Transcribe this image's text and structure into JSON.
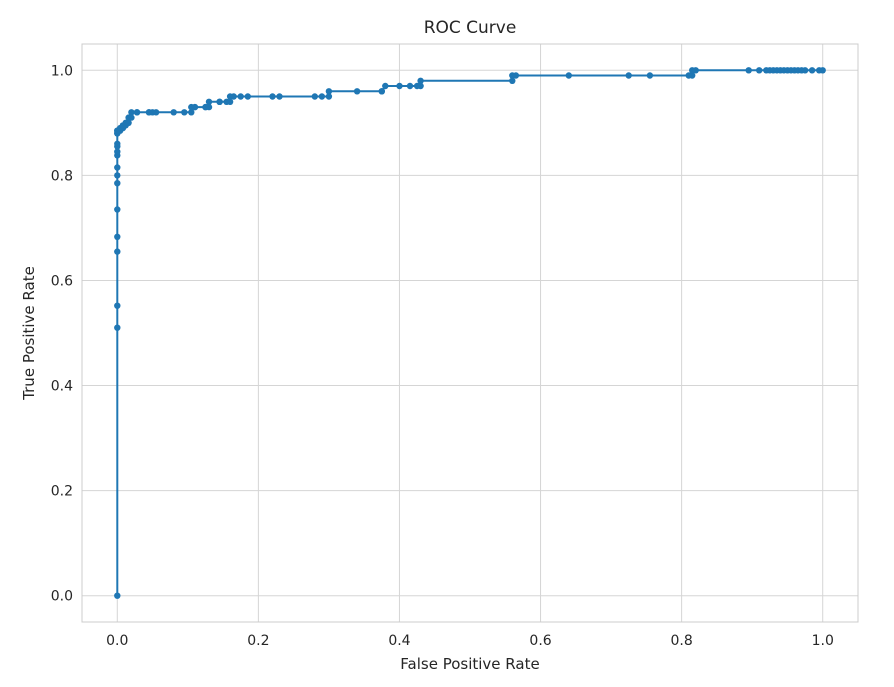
{
  "chart_data": {
    "type": "line",
    "title": "ROC Curve",
    "xlabel": "False Positive Rate",
    "ylabel": "True Positive Rate",
    "xlim": [
      -0.05,
      1.05
    ],
    "ylim": [
      -0.05,
      1.05
    ],
    "xticks": [
      0.0,
      0.2,
      0.4,
      0.6,
      0.8,
      1.0
    ],
    "xtick_labels": [
      "0.0",
      "0.2",
      "0.4",
      "0.6",
      "0.8",
      "1.0"
    ],
    "yticks": [
      0.0,
      0.2,
      0.4,
      0.6,
      0.8,
      1.0
    ],
    "ytick_labels": [
      "0.0",
      "0.2",
      "0.4",
      "0.6",
      "0.8",
      "1.0"
    ],
    "grid": true,
    "colors": {
      "line": "#1f77b4",
      "grid": "#d5d5d5",
      "frame": "#cccccc",
      "text": "#262626"
    },
    "series": [
      {
        "marker": "circle",
        "x": [
          0.0,
          0.0,
          0.0,
          0.0,
          0.0,
          0.0,
          0.0,
          0.0,
          0.0,
          0.0,
          0.0,
          0.0,
          0.0,
          0.0,
          0.0,
          0.0,
          0.0,
          0.004,
          0.004,
          0.008,
          0.008,
          0.012,
          0.012,
          0.016,
          0.016,
          0.02,
          0.02,
          0.028,
          0.028,
          0.045,
          0.045,
          0.05,
          0.055,
          0.08,
          0.095,
          0.105,
          0.105,
          0.11,
          0.11,
          0.125,
          0.125,
          0.13,
          0.13,
          0.145,
          0.145,
          0.155,
          0.16,
          0.16,
          0.165,
          0.175,
          0.185,
          0.22,
          0.23,
          0.28,
          0.29,
          0.3,
          0.3,
          0.34,
          0.375,
          0.375,
          0.38,
          0.4,
          0.415,
          0.425,
          0.43,
          0.43,
          0.56,
          0.56,
          0.565,
          0.64,
          0.725,
          0.755,
          0.81,
          0.815,
          0.815,
          0.82,
          0.895,
          0.91,
          0.92,
          0.925,
          0.93,
          0.935,
          0.94,
          0.945,
          0.95,
          0.955,
          0.96,
          0.965,
          0.97,
          0.975,
          0.985,
          0.995,
          1.0
        ],
        "y": [
          0.0,
          0.51,
          0.552,
          0.655,
          0.683,
          0.735,
          0.785,
          0.8,
          0.815,
          0.838,
          0.845,
          0.855,
          0.86,
          0.88,
          0.88,
          0.885,
          0.885,
          0.885,
          0.89,
          0.89,
          0.895,
          0.895,
          0.9,
          0.9,
          0.91,
          0.91,
          0.92,
          0.92,
          0.92,
          0.92,
          0.92,
          0.92,
          0.92,
          0.92,
          0.92,
          0.92,
          0.93,
          0.93,
          0.93,
          0.93,
          0.93,
          0.93,
          0.94,
          0.94,
          0.94,
          0.94,
          0.94,
          0.95,
          0.95,
          0.95,
          0.95,
          0.95,
          0.95,
          0.95,
          0.95,
          0.95,
          0.96,
          0.96,
          0.96,
          0.96,
          0.97,
          0.97,
          0.97,
          0.97,
          0.97,
          0.98,
          0.98,
          0.99,
          0.99,
          0.99,
          0.99,
          0.99,
          0.99,
          0.99,
          1.0,
          1.0,
          1.0,
          1.0,
          1.0,
          1.0,
          1.0,
          1.0,
          1.0,
          1.0,
          1.0,
          1.0,
          1.0,
          1.0,
          1.0,
          1.0,
          1.0,
          1.0,
          1.0
        ]
      }
    ]
  }
}
